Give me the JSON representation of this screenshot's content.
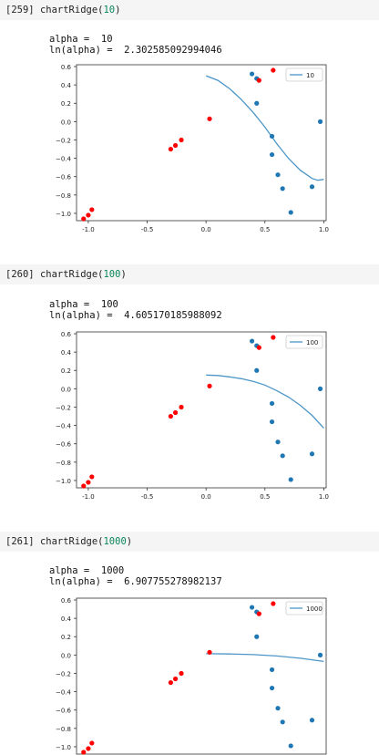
{
  "cells": [
    {
      "prompt": "[259]",
      "fn": "chartRidge",
      "arg": "10",
      "alpha_line": "alpha =  10",
      "ln_line": "ln(alpha) =  2.302585092994046",
      "chart_data": {
        "type": "scatter",
        "legend": "10",
        "legend_position": "top-right",
        "xlim": [
          -1.1,
          1.02
        ],
        "ylim": [
          -1.08,
          0.62
        ],
        "xticks": [
          "-1.0",
          "-0.5",
          "0.0",
          "0.5",
          "1.0"
        ],
        "yticks": [
          "0.6",
          "0.4",
          "0.2",
          "0.0",
          "−0.2",
          "−0.4",
          "−0.6",
          "−0.8",
          "−1.0"
        ],
        "line": {
          "x": [
            0.0,
            0.1,
            0.2,
            0.3,
            0.4,
            0.5,
            0.6,
            0.7,
            0.8,
            0.9,
            0.95,
            1.0
          ],
          "y": [
            0.5,
            0.45,
            0.36,
            0.24,
            0.1,
            -0.06,
            -0.24,
            -0.4,
            -0.53,
            -0.62,
            -0.64,
            -0.63
          ]
        }
      }
    },
    {
      "prompt": "[260]",
      "fn": "chartRidge",
      "arg": "100",
      "alpha_line": "alpha =  100",
      "ln_line": "ln(alpha) =  4.605170185988092",
      "chart_data": {
        "type": "scatter",
        "legend": "100",
        "legend_position": "top-right",
        "xlim": [
          -1.1,
          1.02
        ],
        "ylim": [
          -1.08,
          0.62
        ],
        "xticks": [
          "-1.0",
          "-0.5",
          "0.0",
          "0.5",
          "1.0"
        ],
        "yticks": [
          "0.6",
          "0.4",
          "0.2",
          "0.0",
          "−0.2",
          "−0.4",
          "−0.6",
          "−0.8",
          "−1.0"
        ],
        "line": {
          "x": [
            0.0,
            0.1,
            0.2,
            0.3,
            0.4,
            0.5,
            0.6,
            0.7,
            0.8,
            0.9,
            1.0
          ],
          "y": [
            0.15,
            0.145,
            0.13,
            0.11,
            0.08,
            0.04,
            -0.02,
            -0.09,
            -0.18,
            -0.29,
            -0.43
          ]
        }
      }
    },
    {
      "prompt": "[261]",
      "fn": "chartRidge",
      "arg": "1000",
      "alpha_line": "alpha =  1000",
      "ln_line": "ln(alpha) =  6.907755278982137",
      "chart_data": {
        "type": "scatter",
        "legend": "1000",
        "legend_position": "top-right",
        "xlim": [
          -1.1,
          1.02
        ],
        "ylim": [
          -1.08,
          0.62
        ],
        "xticks": [],
        "yticks": [
          "0.6",
          "0.4",
          "0.2",
          "0.0",
          "−0.2",
          "−0.4",
          "−0.6",
          "−0.8",
          "−1.0"
        ],
        "line": {
          "x": [
            0.0,
            0.2,
            0.4,
            0.6,
            0.8,
            1.0
          ],
          "y": [
            0.015,
            0.012,
            0.005,
            -0.01,
            -0.035,
            -0.07
          ]
        }
      }
    }
  ],
  "points": {
    "red": {
      "x": [
        -1.04,
        -1.0,
        -0.97,
        -0.3,
        -0.26,
        -0.21,
        0.03,
        0.45,
        0.57
      ],
      "y": [
        -1.06,
        -1.02,
        -0.96,
        -0.3,
        -0.26,
        -0.2,
        0.03,
        0.45,
        0.56
      ]
    },
    "blue": {
      "x": [
        0.39,
        0.43,
        0.43,
        0.56,
        0.56,
        0.61,
        0.65,
        0.72,
        0.9,
        0.97
      ],
      "y": [
        0.52,
        0.47,
        0.2,
        -0.16,
        -0.36,
        -0.58,
        -0.73,
        -0.99,
        -0.71,
        0.0
      ]
    }
  },
  "colors": {
    "red": "#ff0000",
    "blue": "#1f77b4",
    "line": "#4c96c8"
  }
}
